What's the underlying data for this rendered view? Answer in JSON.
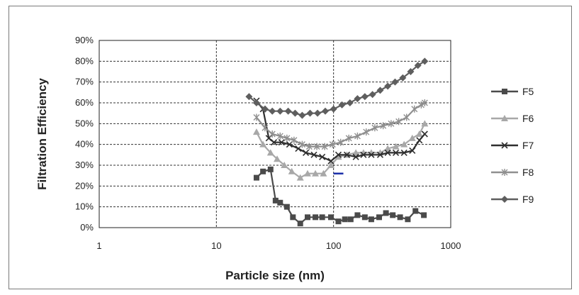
{
  "chart_data": {
    "type": "line",
    "title": "",
    "xlabel": "Particle size (nm)",
    "ylabel": "Filtration Efficiency",
    "x_scale": "log",
    "xlim": [
      1,
      1000
    ],
    "ylim": [
      0,
      90
    ],
    "x_ticks": [
      1,
      10,
      100,
      1000
    ],
    "x_tick_labels": [
      "1",
      "10",
      "100",
      "1000"
    ],
    "y_ticks": [
      0,
      10,
      20,
      30,
      40,
      50,
      60,
      70,
      80,
      90
    ],
    "y_tick_labels": [
      "0%",
      "10%",
      "20%",
      "30%",
      "40%",
      "50%",
      "60%",
      "70%",
      "80%",
      "90%"
    ],
    "grid": "dashed",
    "legend_position": "right",
    "series": [
      {
        "name": "F5",
        "marker": "square",
        "color": "#4a4a4a",
        "points": [
          [
            22,
            24
          ],
          [
            25,
            27
          ],
          [
            29,
            28
          ],
          [
            32,
            13
          ],
          [
            35,
            12
          ],
          [
            40,
            10
          ],
          [
            45,
            5
          ],
          [
            52,
            2
          ],
          [
            60,
            5
          ],
          [
            70,
            5
          ],
          [
            80,
            5
          ],
          [
            95,
            5
          ],
          [
            110,
            3
          ],
          [
            125,
            4
          ],
          [
            140,
            4
          ],
          [
            160,
            6
          ],
          [
            185,
            5
          ],
          [
            210,
            4
          ],
          [
            245,
            5
          ],
          [
            280,
            7
          ],
          [
            320,
            6
          ],
          [
            370,
            5
          ],
          [
            430,
            4
          ],
          [
            500,
            8
          ],
          [
            590,
            6
          ]
        ]
      },
      {
        "name": "F6",
        "marker": "triangle",
        "color": "#a8a8a8",
        "points": [
          [
            22,
            46
          ],
          [
            25,
            40
          ],
          [
            29,
            36
          ],
          [
            33,
            33
          ],
          [
            38,
            30
          ],
          [
            44,
            27
          ],
          [
            52,
            24
          ],
          [
            60,
            26
          ],
          [
            70,
            26
          ],
          [
            82,
            26
          ],
          [
            95,
            30
          ],
          [
            110,
            34
          ],
          [
            130,
            35
          ],
          [
            155,
            36
          ],
          [
            180,
            36
          ],
          [
            210,
            36
          ],
          [
            250,
            36
          ],
          [
            290,
            38
          ],
          [
            340,
            39
          ],
          [
            400,
            40
          ],
          [
            470,
            43
          ],
          [
            540,
            45
          ],
          [
            600,
            50
          ]
        ]
      },
      {
        "name": "F7",
        "marker": "x",
        "color": "#2e2e2e",
        "points": [
          [
            22,
            61
          ],
          [
            25,
            57
          ],
          [
            28,
            43
          ],
          [
            31,
            41
          ],
          [
            36,
            41
          ],
          [
            42,
            40
          ],
          [
            50,
            38
          ],
          [
            58,
            36
          ],
          [
            68,
            35
          ],
          [
            80,
            34
          ],
          [
            95,
            32
          ],
          [
            110,
            35
          ],
          [
            130,
            35
          ],
          [
            155,
            34
          ],
          [
            180,
            35
          ],
          [
            210,
            35
          ],
          [
            250,
            35
          ],
          [
            290,
            36
          ],
          [
            340,
            36
          ],
          [
            400,
            36
          ],
          [
            470,
            37
          ],
          [
            540,
            42
          ],
          [
            600,
            45
          ]
        ]
      },
      {
        "name": "F8",
        "marker": "star",
        "color": "#8f8f8f",
        "points": [
          [
            22,
            53
          ],
          [
            26,
            48
          ],
          [
            30,
            45
          ],
          [
            35,
            44
          ],
          [
            40,
            43
          ],
          [
            46,
            42
          ],
          [
            54,
            40
          ],
          [
            62,
            39
          ],
          [
            72,
            39
          ],
          [
            84,
            39
          ],
          [
            98,
            40
          ],
          [
            115,
            41
          ],
          [
            135,
            43
          ],
          [
            160,
            44
          ],
          [
            190,
            46
          ],
          [
            225,
            48
          ],
          [
            265,
            49
          ],
          [
            310,
            50
          ],
          [
            360,
            51
          ],
          [
            420,
            53
          ],
          [
            490,
            57
          ],
          [
            560,
            59
          ],
          [
            600,
            60
          ]
        ]
      },
      {
        "name": "F9",
        "marker": "diamond",
        "color": "#5e5e5e",
        "points": [
          [
            19,
            63
          ],
          [
            22,
            60
          ],
          [
            26,
            57
          ],
          [
            30,
            56
          ],
          [
            35,
            56
          ],
          [
            41,
            56
          ],
          [
            47,
            55
          ],
          [
            54,
            54
          ],
          [
            63,
            55
          ],
          [
            73,
            55
          ],
          [
            85,
            56
          ],
          [
            100,
            57
          ],
          [
            118,
            59
          ],
          [
            138,
            60
          ],
          [
            160,
            62
          ],
          [
            185,
            63
          ],
          [
            215,
            64
          ],
          [
            250,
            66
          ],
          [
            290,
            68
          ],
          [
            335,
            70
          ],
          [
            390,
            72
          ],
          [
            455,
            75
          ],
          [
            525,
            78
          ],
          [
            600,
            80
          ]
        ]
      }
    ],
    "annotations": [
      {
        "type": "dash",
        "x": 110,
        "y": 26,
        "color": "#1a2ea8"
      }
    ]
  }
}
